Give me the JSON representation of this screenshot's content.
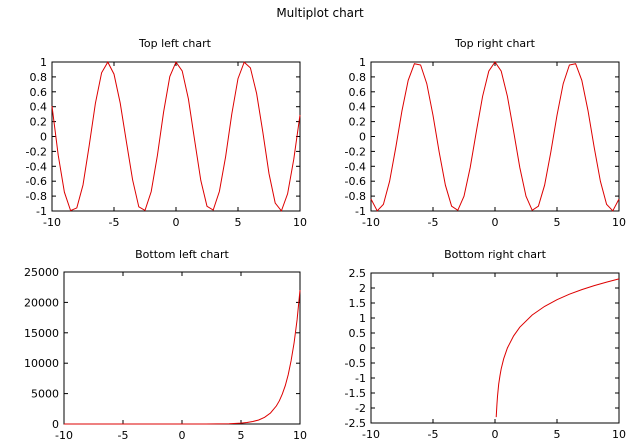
{
  "figure_title": "Multiplot chart",
  "chart_data": [
    {
      "type": "line",
      "title": "Top left chart",
      "xlabel": "",
      "ylabel": "",
      "xlim": [
        -10,
        10
      ],
      "ylim": [
        -1,
        1
      ],
      "xticks": [
        -10,
        -5,
        0,
        5,
        10
      ],
      "yticks": [
        1,
        0.8,
        0.6,
        0.4,
        0.2,
        0,
        -0.2,
        -0.4,
        -0.6,
        -0.8,
        -1
      ],
      "ytick_labels": [
        "1",
        "0.8",
        "0.6",
        "0.4",
        "0.2",
        "0",
        "-0.2",
        "-0.4",
        "-0.6",
        "-0.8",
        "-1"
      ],
      "line_color": "#dd0000",
      "series": [
        {
          "x": [
            -10,
            -9.5,
            -9,
            -8.5,
            -8,
            -7.5,
            -7,
            -6.5,
            -6,
            -5.5,
            -5,
            -4.5,
            -4,
            -3.5,
            -3,
            -2.5,
            -2,
            -1.5,
            -1,
            -0.5,
            0,
            0.5,
            1,
            1.5,
            2,
            2.5,
            3,
            3.5,
            4,
            4.5,
            5,
            5.5,
            6,
            6.5,
            7,
            7.5,
            8,
            8.5,
            9,
            9.5,
            10
          ],
          "y": [
            0.408,
            -0.249,
            -0.747,
            -0.995,
            -0.958,
            -0.651,
            -0.122,
            0.446,
            0.855,
            0.999,
            0.837,
            0.45,
            -0.071,
            -0.581,
            -0.943,
            -0.992,
            -0.739,
            -0.254,
            0.329,
            0.805,
            0.998,
            0.881,
            0.505,
            -0.048,
            -0.589,
            -0.937,
            -0.987,
            -0.737,
            -0.272,
            0.304,
            0.777,
            0.997,
            0.921,
            0.579,
            0.062,
            -0.498,
            -0.892,
            -0.999,
            -0.769,
            -0.304,
            0.29
          ]
        }
      ]
    },
    {
      "type": "line",
      "title": "Top right chart",
      "xlabel": "",
      "ylabel": "",
      "xlim": [
        -10,
        10
      ],
      "ylim": [
        -1,
        1
      ],
      "xticks": [
        -10,
        -5,
        0,
        5,
        10
      ],
      "yticks": [
        1,
        0.8,
        0.6,
        0.4,
        0.2,
        0,
        -0.2,
        -0.4,
        -0.6,
        -0.8,
        -1
      ],
      "ytick_labels": [
        "1",
        "0.8",
        "0.6",
        "0.4",
        "0.2",
        "0",
        "-0.2",
        "-0.4",
        "-0.6",
        "-0.8",
        "-1"
      ],
      "line_color": "#dd0000",
      "series": [
        {
          "x": [
            -10,
            -9.5,
            -9,
            -8.5,
            -8,
            -7.5,
            -7,
            -6.5,
            -6,
            -5.5,
            -5,
            -4.5,
            -4,
            -3.5,
            -3,
            -2.5,
            -2,
            -1.5,
            -1,
            -0.5,
            0,
            0.5,
            1,
            1.5,
            2,
            2.5,
            3,
            3.5,
            4,
            4.5,
            5,
            5.5,
            6,
            6.5,
            7,
            7.5,
            8,
            8.5,
            9,
            9.5,
            10
          ],
          "y": [
            -0.839,
            -0.997,
            -0.911,
            -0.602,
            -0.146,
            0.347,
            0.754,
            0.977,
            0.96,
            0.709,
            0.284,
            -0.211,
            -0.654,
            -0.936,
            -0.99,
            -0.801,
            -0.416,
            0.071,
            0.54,
            0.878,
            1.0,
            0.878,
            0.54,
            0.071,
            -0.416,
            -0.801,
            -0.99,
            -0.936,
            -0.654,
            -0.211,
            0.284,
            0.709,
            0.96,
            0.977,
            0.754,
            0.347,
            -0.146,
            -0.602,
            -0.911,
            -0.997,
            -0.839
          ]
        }
      ]
    },
    {
      "type": "line",
      "title": "Bottom left chart",
      "xlabel": "",
      "ylabel": "",
      "xlim": [
        -10,
        10
      ],
      "ylim": [
        0,
        25000
      ],
      "xticks": [
        -10,
        -5,
        0,
        5,
        10
      ],
      "yticks": [
        25000,
        20000,
        15000,
        10000,
        5000,
        0
      ],
      "ytick_labels": [
        "25000",
        "20000",
        "15000",
        "10000",
        "5000",
        "0"
      ],
      "line_color": "#dd0000",
      "series": [
        {
          "x": [
            -10,
            -8,
            -6,
            -4,
            -2,
            0,
            1,
            2,
            3,
            4,
            5,
            5.5,
            6,
            6.5,
            7,
            7.5,
            8,
            8.25,
            8.5,
            8.75,
            9,
            9.25,
            9.5,
            9.75,
            10
          ],
          "y": [
            0,
            0,
            0,
            0,
            0,
            1,
            3,
            7,
            20,
            55,
            148,
            245,
            403,
            665,
            1097,
            1808,
            2981,
            3827,
            4915,
            6311,
            8103,
            10405,
            13360,
            17154,
            22026
          ]
        }
      ]
    },
    {
      "type": "line",
      "title": "Bottom right chart",
      "xlabel": "",
      "ylabel": "",
      "xlim": [
        -10,
        10
      ],
      "ylim": [
        -2.5,
        2.5
      ],
      "xticks": [
        -10,
        -5,
        0,
        5,
        10
      ],
      "yticks": [
        2.5,
        2,
        1.5,
        1,
        0.5,
        0,
        -0.5,
        -1,
        -1.5,
        -2,
        -2.5
      ],
      "ytick_labels": [
        "2.5",
        "2",
        "1.5",
        "1",
        "0.5",
        "0",
        "-0.5",
        "-1",
        "-1.5",
        "-2",
        "-2.5"
      ],
      "line_color": "#dd0000",
      "series": [
        {
          "x": [
            0.1,
            0.15,
            0.2,
            0.3,
            0.4,
            0.5,
            0.7,
            1,
            1.5,
            2,
            3,
            4,
            5,
            6,
            7,
            8,
            9,
            10
          ],
          "y": [
            -2.303,
            -1.897,
            -1.609,
            -1.204,
            -0.916,
            -0.693,
            -0.357,
            0,
            0.405,
            0.693,
            1.099,
            1.386,
            1.609,
            1.792,
            1.946,
            2.079,
            2.197,
            2.303
          ]
        }
      ]
    }
  ]
}
